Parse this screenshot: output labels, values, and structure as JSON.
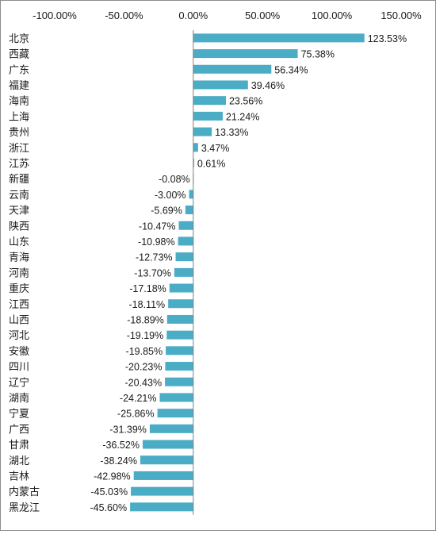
{
  "colors": {
    "bar": "#4BACC6",
    "axis": "#808080",
    "text": "#1a1a1a"
  },
  "chart_data": {
    "type": "bar",
    "orientation": "horizontal",
    "title": "",
    "xlabel": "",
    "ylabel": "",
    "xlim": [
      -100,
      150
    ],
    "xticks": [
      -100,
      -50,
      0,
      50,
      100,
      150
    ],
    "xtick_labels": [
      "-100.00%",
      "-50.00%",
      "0.00%",
      "50.00%",
      "100.00%",
      "150.00%"
    ],
    "x_axis_position": "top",
    "grid": false,
    "legend": "none",
    "categories": [
      "北京",
      "西藏",
      "广东",
      "福建",
      "海南",
      "上海",
      "贵州",
      "浙江",
      "江苏",
      "新疆",
      "云南",
      "天津",
      "陕西",
      "山东",
      "青海",
      "河南",
      "重庆",
      "江西",
      "山西",
      "河北",
      "安徽",
      "四川",
      "辽宁",
      "湖南",
      "宁夏",
      "广西",
      "甘肃",
      "湖北",
      "吉林",
      "内蒙古",
      "黑龙江"
    ],
    "values": [
      123.53,
      75.38,
      56.34,
      39.46,
      23.56,
      21.24,
      13.33,
      3.47,
      0.61,
      -0.08,
      -3.0,
      -5.69,
      -10.47,
      -10.98,
      -12.73,
      -13.7,
      -17.18,
      -18.11,
      -18.89,
      -19.19,
      -19.85,
      -20.23,
      -20.43,
      -24.21,
      -25.86,
      -31.39,
      -36.52,
      -38.24,
      -42.98,
      -45.03,
      -45.6
    ],
    "value_labels": [
      "123.53%",
      "75.38%",
      "56.34%",
      "39.46%",
      "23.56%",
      "21.24%",
      "13.33%",
      "3.47%",
      "0.61%",
      "-0.08%",
      "-3.00%",
      "-5.69%",
      "-10.47%",
      "-10.98%",
      "-12.73%",
      "-13.70%",
      "-17.18%",
      "-18.11%",
      "-18.89%",
      "-19.19%",
      "-19.85%",
      "-20.23%",
      "-20.43%",
      "-24.21%",
      "-25.86%",
      "-31.39%",
      "-36.52%",
      "-38.24%",
      "-42.98%",
      "-45.03%",
      "-45.60%"
    ]
  }
}
